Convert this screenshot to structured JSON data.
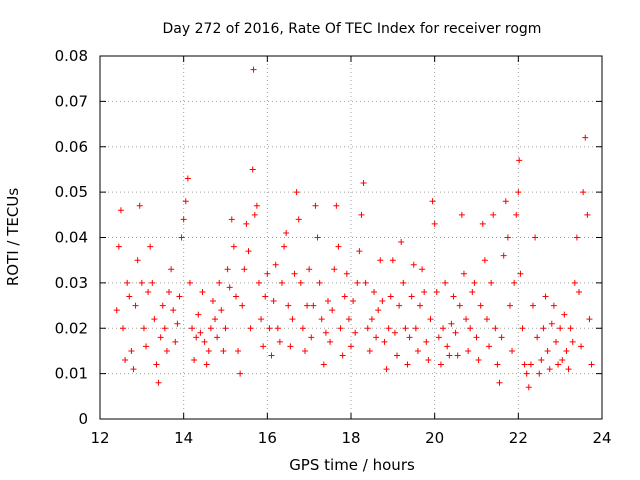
{
  "chart_data": {
    "type": "scatter",
    "title": "Day 272 of 2016, Rate Of TEC Index for receiver rogm",
    "xlabel": "GPS time / hours",
    "ylabel": "ROTI / TECUs",
    "xlim": [
      12,
      24
    ],
    "ylim": [
      0,
      0.08
    ],
    "xticks": [
      12,
      14,
      16,
      18,
      20,
      22,
      24
    ],
    "yticks": [
      0,
      0.01,
      0.02,
      0.03,
      0.04,
      0.05,
      0.06,
      0.07,
      0.08
    ],
    "xtick_labels": [
      "12",
      "14",
      "16",
      "18",
      "20",
      "22",
      "24"
    ],
    "ytick_labels": [
      "0",
      "0.01",
      "0.02",
      "0.03",
      "0.04",
      "0.05",
      "0.06",
      "0.07",
      "0.08"
    ],
    "grid": true,
    "marker": "+",
    "color": "#ff0000",
    "series": [
      {
        "name": "ROTI",
        "points": [
          [
            12.4,
            0.024
          ],
          [
            12.45,
            0.038
          ],
          [
            12.5,
            0.046
          ],
          [
            12.55,
            0.02
          ],
          [
            12.6,
            0.013
          ],
          [
            12.65,
            0.03
          ],
          [
            12.7,
            0.027
          ],
          [
            12.75,
            0.015
          ],
          [
            12.8,
            0.011
          ],
          [
            12.85,
            0.025
          ],
          [
            12.9,
            0.035
          ],
          [
            12.95,
            0.047
          ],
          [
            13.0,
            0.03
          ],
          [
            13.05,
            0.02
          ],
          [
            13.1,
            0.016
          ],
          [
            13.15,
            0.028
          ],
          [
            13.2,
            0.038
          ],
          [
            13.25,
            0.03
          ],
          [
            13.3,
            0.022
          ],
          [
            13.35,
            0.012
          ],
          [
            13.4,
            0.008
          ],
          [
            13.45,
            0.018
          ],
          [
            13.5,
            0.025
          ],
          [
            13.55,
            0.02
          ],
          [
            13.6,
            0.015
          ],
          [
            13.65,
            0.028
          ],
          [
            13.7,
            0.033
          ],
          [
            13.75,
            0.024
          ],
          [
            13.8,
            0.017
          ],
          [
            13.85,
            0.021
          ],
          [
            13.9,
            0.027
          ],
          [
            13.95,
            0.04
          ],
          [
            14.0,
            0.044
          ],
          [
            14.05,
            0.048
          ],
          [
            14.1,
            0.053
          ],
          [
            14.15,
            0.03
          ],
          [
            14.2,
            0.02
          ],
          [
            14.25,
            0.013
          ],
          [
            14.3,
            0.018
          ],
          [
            14.35,
            0.023
          ],
          [
            14.4,
            0.019
          ],
          [
            14.45,
            0.028
          ],
          [
            14.5,
            0.017
          ],
          [
            14.55,
            0.012
          ],
          [
            14.6,
            0.015
          ],
          [
            14.65,
            0.02
          ],
          [
            14.7,
            0.026
          ],
          [
            14.75,
            0.022
          ],
          [
            14.8,
            0.018
          ],
          [
            14.85,
            0.03
          ],
          [
            14.9,
            0.024
          ],
          [
            14.95,
            0.015
          ],
          [
            15.0,
            0.02
          ],
          [
            15.05,
            0.033
          ],
          [
            15.1,
            0.029
          ],
          [
            15.15,
            0.044
          ],
          [
            15.2,
            0.038
          ],
          [
            15.25,
            0.027
          ],
          [
            15.3,
            0.015
          ],
          [
            15.35,
            0.01
          ],
          [
            15.4,
            0.025
          ],
          [
            15.45,
            0.033
          ],
          [
            15.5,
            0.043
          ],
          [
            15.55,
            0.037
          ],
          [
            15.6,
            0.02
          ],
          [
            15.65,
            0.055
          ],
          [
            15.67,
            0.077
          ],
          [
            15.7,
            0.045
          ],
          [
            15.75,
            0.047
          ],
          [
            15.8,
            0.03
          ],
          [
            15.85,
            0.022
          ],
          [
            15.9,
            0.016
          ],
          [
            15.95,
            0.027
          ],
          [
            16.0,
            0.032
          ],
          [
            16.05,
            0.02
          ],
          [
            16.1,
            0.014
          ],
          [
            16.15,
            0.026
          ],
          [
            16.2,
            0.034
          ],
          [
            16.25,
            0.02
          ],
          [
            16.3,
            0.017
          ],
          [
            16.35,
            0.03
          ],
          [
            16.4,
            0.038
          ],
          [
            16.45,
            0.041
          ],
          [
            16.5,
            0.025
          ],
          [
            16.55,
            0.016
          ],
          [
            16.6,
            0.022
          ],
          [
            16.65,
            0.032
          ],
          [
            16.7,
            0.05
          ],
          [
            16.75,
            0.044
          ],
          [
            16.8,
            0.03
          ],
          [
            16.85,
            0.02
          ],
          [
            16.9,
            0.015
          ],
          [
            16.95,
            0.025
          ],
          [
            17.0,
            0.033
          ],
          [
            17.05,
            0.018
          ],
          [
            17.1,
            0.025
          ],
          [
            17.15,
            0.047
          ],
          [
            17.2,
            0.04
          ],
          [
            17.25,
            0.03
          ],
          [
            17.3,
            0.022
          ],
          [
            17.35,
            0.012
          ],
          [
            17.4,
            0.019
          ],
          [
            17.45,
            0.026
          ],
          [
            17.5,
            0.017
          ],
          [
            17.55,
            0.024
          ],
          [
            17.6,
            0.033
          ],
          [
            17.65,
            0.047
          ],
          [
            17.7,
            0.038
          ],
          [
            17.75,
            0.02
          ],
          [
            17.8,
            0.014
          ],
          [
            17.85,
            0.027
          ],
          [
            17.9,
            0.032
          ],
          [
            17.95,
            0.022
          ],
          [
            18.0,
            0.016
          ],
          [
            18.05,
            0.026
          ],
          [
            18.1,
            0.019
          ],
          [
            18.15,
            0.03
          ],
          [
            18.2,
            0.037
          ],
          [
            18.25,
            0.045
          ],
          [
            18.3,
            0.052
          ],
          [
            18.35,
            0.03
          ],
          [
            18.4,
            0.02
          ],
          [
            18.45,
            0.015
          ],
          [
            18.5,
            0.022
          ],
          [
            18.55,
            0.028
          ],
          [
            18.6,
            0.018
          ],
          [
            18.65,
            0.024
          ],
          [
            18.7,
            0.035
          ],
          [
            18.75,
            0.026
          ],
          [
            18.8,
            0.017
          ],
          [
            18.85,
            0.011
          ],
          [
            18.9,
            0.02
          ],
          [
            18.95,
            0.027
          ],
          [
            19.0,
            0.035
          ],
          [
            19.05,
            0.019
          ],
          [
            19.1,
            0.014
          ],
          [
            19.15,
            0.025
          ],
          [
            19.2,
            0.039
          ],
          [
            19.25,
            0.03
          ],
          [
            19.3,
            0.02
          ],
          [
            19.35,
            0.012
          ],
          [
            19.4,
            0.018
          ],
          [
            19.45,
            0.027
          ],
          [
            19.5,
            0.034
          ],
          [
            19.55,
            0.02
          ],
          [
            19.6,
            0.015
          ],
          [
            19.65,
            0.025
          ],
          [
            19.7,
            0.033
          ],
          [
            19.75,
            0.028
          ],
          [
            19.8,
            0.017
          ],
          [
            19.85,
            0.013
          ],
          [
            19.9,
            0.022
          ],
          [
            19.95,
            0.048
          ],
          [
            20.0,
            0.043
          ],
          [
            20.05,
            0.028
          ],
          [
            20.1,
            0.018
          ],
          [
            20.15,
            0.012
          ],
          [
            20.2,
            0.02
          ],
          [
            20.25,
            0.03
          ],
          [
            20.3,
            0.016
          ],
          [
            20.35,
            0.014
          ],
          [
            20.4,
            0.021
          ],
          [
            20.45,
            0.027
          ],
          [
            20.5,
            0.019
          ],
          [
            20.55,
            0.014
          ],
          [
            20.6,
            0.025
          ],
          [
            20.65,
            0.045
          ],
          [
            20.7,
            0.032
          ],
          [
            20.75,
            0.022
          ],
          [
            20.8,
            0.015
          ],
          [
            20.85,
            0.02
          ],
          [
            20.9,
            0.028
          ],
          [
            20.95,
            0.03
          ],
          [
            21.0,
            0.018
          ],
          [
            21.05,
            0.013
          ],
          [
            21.1,
            0.025
          ],
          [
            21.15,
            0.043
          ],
          [
            21.2,
            0.035
          ],
          [
            21.25,
            0.022
          ],
          [
            21.3,
            0.016
          ],
          [
            21.35,
            0.03
          ],
          [
            21.4,
            0.045
          ],
          [
            21.45,
            0.02
          ],
          [
            21.5,
            0.012
          ],
          [
            21.55,
            0.008
          ],
          [
            21.6,
            0.018
          ],
          [
            21.65,
            0.036
          ],
          [
            21.7,
            0.048
          ],
          [
            21.75,
            0.04
          ],
          [
            21.8,
            0.025
          ],
          [
            21.85,
            0.015
          ],
          [
            21.9,
            0.03
          ],
          [
            21.95,
            0.045
          ],
          [
            22.0,
            0.05
          ],
          [
            22.02,
            0.057
          ],
          [
            22.05,
            0.032
          ],
          [
            22.1,
            0.02
          ],
          [
            22.15,
            0.012
          ],
          [
            22.2,
            0.01
          ],
          [
            22.25,
            0.007
          ],
          [
            22.3,
            0.012
          ],
          [
            22.35,
            0.025
          ],
          [
            22.4,
            0.04
          ],
          [
            22.45,
            0.018
          ],
          [
            22.5,
            0.01
          ],
          [
            22.55,
            0.013
          ],
          [
            22.6,
            0.02
          ],
          [
            22.65,
            0.027
          ],
          [
            22.7,
            0.015
          ],
          [
            22.75,
            0.011
          ],
          [
            22.8,
            0.021
          ],
          [
            22.85,
            0.025
          ],
          [
            22.9,
            0.017
          ],
          [
            22.95,
            0.012
          ],
          [
            23.0,
            0.02
          ],
          [
            23.05,
            0.013
          ],
          [
            23.1,
            0.023
          ],
          [
            23.15,
            0.015
          ],
          [
            23.2,
            0.011
          ],
          [
            23.25,
            0.02
          ],
          [
            23.3,
            0.017
          ],
          [
            23.35,
            0.03
          ],
          [
            23.4,
            0.04
          ],
          [
            23.45,
            0.028
          ],
          [
            23.5,
            0.016
          ],
          [
            23.55,
            0.05
          ],
          [
            23.6,
            0.062
          ],
          [
            23.65,
            0.045
          ],
          [
            23.7,
            0.022
          ],
          [
            23.75,
            0.012
          ]
        ]
      }
    ]
  }
}
